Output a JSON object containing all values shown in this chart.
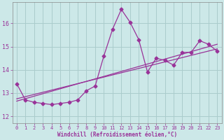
{
  "xlabel": "Windchill (Refroidissement éolien,°C)",
  "bg_color": "#cce8e8",
  "line_color": "#993399",
  "grid_color": "#aacccc",
  "xlim": [
    -0.5,
    23.5
  ],
  "ylim": [
    11.7,
    16.9
  ],
  "xticks": [
    0,
    1,
    2,
    3,
    4,
    5,
    6,
    7,
    8,
    9,
    10,
    11,
    12,
    13,
    14,
    15,
    16,
    17,
    18,
    19,
    20,
    21,
    22,
    23
  ],
  "yticks": [
    12,
    13,
    14,
    15,
    16
  ],
  "hours": [
    0,
    1,
    2,
    3,
    4,
    5,
    6,
    7,
    8,
    9,
    10,
    11,
    12,
    13,
    14,
    15,
    16,
    17,
    18,
    19,
    20,
    21,
    22,
    23
  ],
  "temps": [
    13.4,
    12.7,
    12.6,
    12.55,
    12.5,
    12.55,
    12.6,
    12.7,
    13.1,
    13.3,
    14.6,
    15.75,
    16.6,
    16.05,
    15.3,
    13.9,
    14.5,
    14.4,
    14.2,
    14.75,
    14.75,
    15.25,
    15.1,
    14.8
  ],
  "trend1_x": [
    0,
    23
  ],
  "trend1_y": [
    12.75,
    14.9
  ],
  "trend2_x": [
    0,
    23
  ],
  "trend2_y": [
    12.65,
    15.1
  ],
  "marker": "D",
  "marker_size": 2.5,
  "line_width": 0.9,
  "tick_fontsize": 5.0,
  "xlabel_fontsize": 5.5
}
